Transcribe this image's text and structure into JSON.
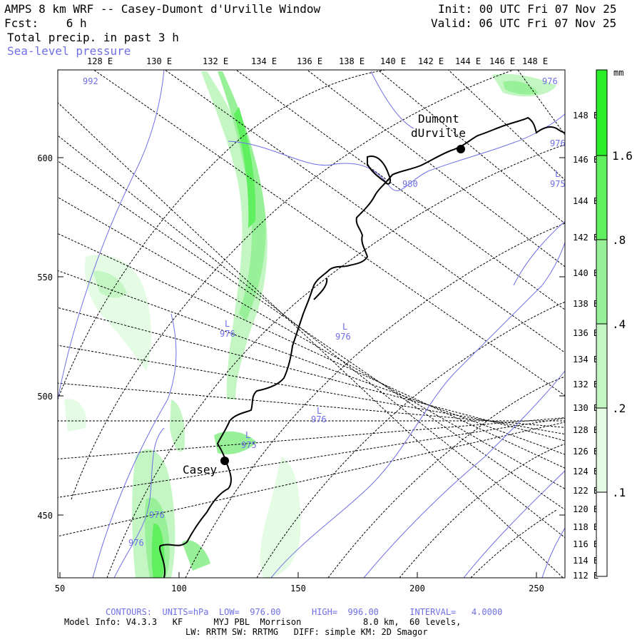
{
  "header": {
    "model_title": "AMPS 8 km WRF -- Casey-Dumont d'Urville Window",
    "init": "Init: 00 UTC Fri 07 Nov 25",
    "forecast": "Fcst:    6 h",
    "valid": "Valid: 06 UTC Fri 07 Nov 25",
    "field_main": "Total precip. in past 3 h",
    "field_secondary": "Sea-level pressure"
  },
  "top_longitudes": [
    "128 E",
    "130 E",
    "132 E",
    "134 E",
    "136 E",
    "138 E",
    "140 E",
    "142 E",
    "144 E",
    "146 E",
    "148 E"
  ],
  "right_longitudes": [
    "148 E",
    "146 E",
    "144 E",
    "142 E",
    "140 E",
    "138 E",
    "136 E",
    "134 E",
    "132 E",
    "130 E",
    "128 E",
    "126 E",
    "124 E",
    "122 E",
    "120 E",
    "118 E",
    "116 E",
    "114 E",
    "112 E"
  ],
  "y_axis_ticks": [
    "600",
    "550",
    "500",
    "450"
  ],
  "x_axis_ticks": [
    "50",
    "100",
    "150",
    "200",
    "250"
  ],
  "colorbar": {
    "unit": "mm",
    "labels": [
      "1.6",
      ".8",
      ".4",
      ".2",
      ".1"
    ],
    "colors": [
      "#2aef2a",
      "#5fef5f",
      "#98f098",
      "#c4f6c4",
      "#e4fbe4",
      "#ffffff"
    ]
  },
  "stations": [
    {
      "name_line1": "Dumont",
      "name_line2": "dUrville"
    },
    {
      "name_line1": "Casey",
      "name_line2": ""
    }
  ],
  "pressure_labels": [
    "992",
    "976",
    "976",
    "976",
    "976",
    "975",
    "976",
    "976",
    "980",
    "976",
    "975",
    "975",
    "L",
    "L",
    "L",
    "L",
    "L"
  ],
  "footer": {
    "contours": "CONTOURS:  UNITS=hPa  LOW=  976.00      HIGH=  996.00      INTERVAL=   4.0000",
    "model_info": "Model Info: V4.3.3   KF      MYJ PBL  Morrison            8.0 km,  60 levels,",
    "physics": "LW: RRTM SW: RRTMG   DIFF: simple KM: 2D Smagor"
  }
}
